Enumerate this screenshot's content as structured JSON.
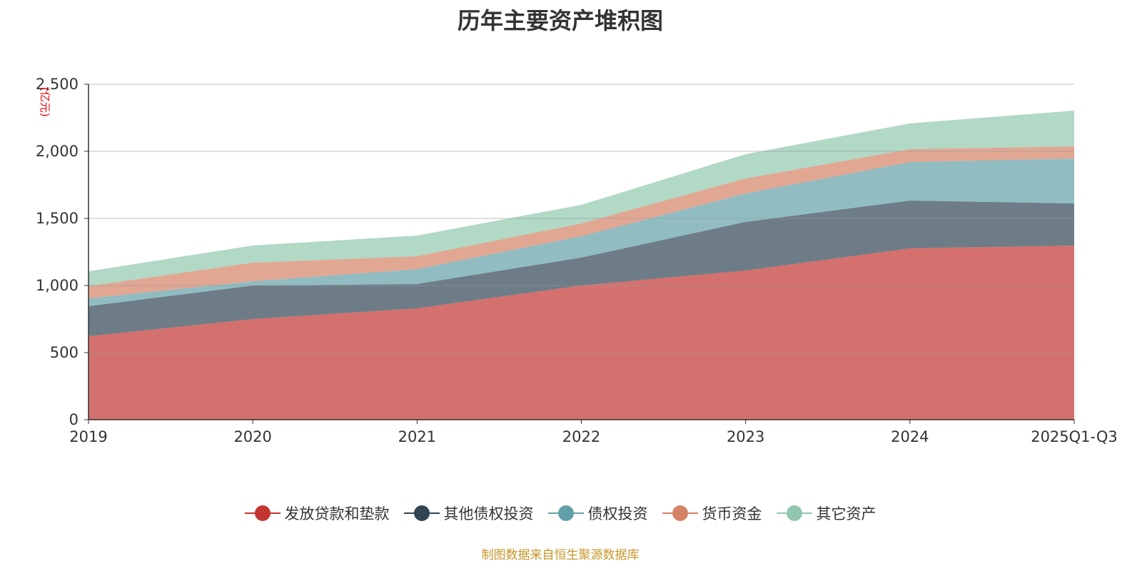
{
  "chart_data": {
    "type": "area",
    "stacked": true,
    "title": "历年主要资产堆积图",
    "ylabel": "(亿元)",
    "xlabel": "",
    "ylim": [
      0,
      2500
    ],
    "yticks": [
      "0",
      "500",
      "1,000",
      "1,500",
      "2,000",
      "2,500"
    ],
    "categories": [
      "2019",
      "2020",
      "2021",
      "2022",
      "2023",
      "2024",
      "2025Q1-Q3"
    ],
    "series": [
      {
        "name": "发放贷款和垫款",
        "color": "#c23531",
        "values": [
          622,
          750,
          830,
          1000,
          1112,
          1277,
          1298
        ]
      },
      {
        "name": "其他债权投资",
        "color": "#2f4554",
        "values": [
          224,
          250,
          181,
          208,
          362,
          356,
          314
        ]
      },
      {
        "name": "债权投资",
        "color": "#61a0a8",
        "values": [
          58,
          32,
          111,
          159,
          212,
          287,
          335
        ]
      },
      {
        "name": "货币资金",
        "color": "#d48265",
        "values": [
          91,
          138,
          96,
          96,
          112,
          96,
          90
        ]
      },
      {
        "name": "其它资产",
        "color": "#91c7ae",
        "values": [
          111,
          128,
          154,
          138,
          181,
          192,
          266
        ]
      }
    ],
    "grid": true,
    "legend_position": "bottom"
  },
  "source": "制图数据来自恒生聚源数据库"
}
